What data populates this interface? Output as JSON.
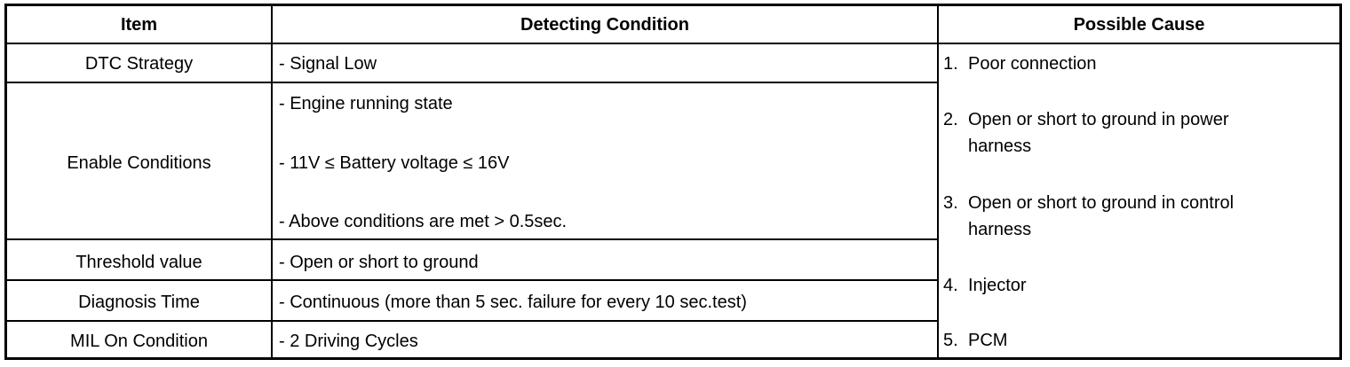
{
  "headers": {
    "item": "Item",
    "condition": "Detecting Condition",
    "cause": "Possible Cause"
  },
  "rows": [
    {
      "item": "DTC Strategy",
      "conditions": [
        "- Signal Low"
      ]
    },
    {
      "item": "Enable Conditions",
      "conditions": [
        "- Engine running state",
        "- 11V ≤ Battery voltage ≤ 16V",
        "- Above conditions are met > 0.5sec."
      ]
    },
    {
      "item": "Threshold value",
      "conditions": [
        "- Open or short to ground"
      ]
    },
    {
      "item": "Diagnosis Time",
      "conditions": [
        "- Continuous (more than 5 sec. failure for every 10 sec.test)"
      ]
    },
    {
      "item": "MIL On Condition",
      "conditions": [
        "- 2 Driving Cycles"
      ]
    }
  ],
  "causes": [
    {
      "num": "1.",
      "lines": [
        "Poor connection"
      ]
    },
    {
      "num": "2.",
      "lines": [
        "Open or short to ground in power",
        "harness"
      ]
    },
    {
      "num": "3.",
      "lines": [
        "Open or short to ground in control",
        "harness"
      ]
    },
    {
      "num": "4.",
      "lines": [
        "Injector"
      ]
    },
    {
      "num": "5.",
      "lines": [
        "PCM"
      ]
    }
  ]
}
